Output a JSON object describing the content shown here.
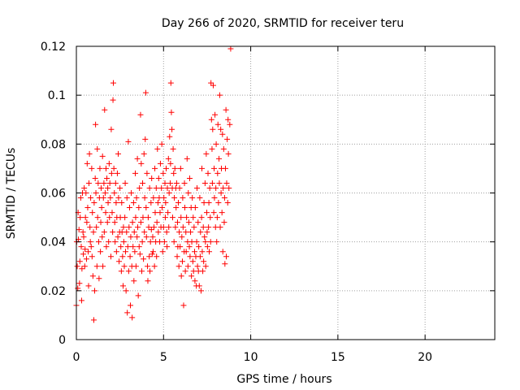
{
  "chart_data": {
    "type": "scatter",
    "title": "Day 266 of 2020, SRMTID for receiver teru",
    "xlabel": "GPS time / hours",
    "ylabel": "SRMTID / TECUs",
    "xlim": [
      0,
      24
    ],
    "ylim": [
      0,
      0.12
    ],
    "xticks": [
      0,
      5,
      10,
      15,
      20
    ],
    "yticks": [
      0,
      0.02,
      0.04,
      0.06,
      0.08,
      0.1,
      0.12
    ],
    "ytick_labels": [
      "0",
      "0.02",
      "0.04",
      "0.06",
      "0.08",
      "0.1",
      "0.12"
    ],
    "grid": true,
    "marker": "+",
    "colors": {
      "marker": "#ff0000",
      "grid": "#a0a0a0",
      "axis": "#000000"
    },
    "series": [
      {
        "x": [
          0.0,
          0.02,
          0.05,
          0.08,
          0.1,
          0.12,
          0.15,
          0.18,
          0.2,
          0.22,
          0.25,
          0.28,
          0.3,
          0.32,
          0.35,
          0.38,
          0.4,
          0.42,
          0.45,
          0.48,
          0.5,
          0.52,
          0.55,
          0.58,
          0.6,
          0.62,
          0.65,
          0.68,
          0.7,
          0.72,
          0.75,
          0.78,
          0.8,
          0.82,
          0.85,
          0.88,
          0.9,
          0.92,
          0.95,
          0.98,
          1.0,
          1.02,
          1.05,
          1.08,
          1.1,
          1.12,
          1.15,
          1.18,
          1.2,
          1.22,
          1.25,
          1.28,
          1.3,
          1.32,
          1.35,
          1.38,
          1.4,
          1.42,
          1.45,
          1.48,
          1.5,
          1.52,
          1.55,
          1.58,
          1.6,
          1.62,
          1.65,
          1.68,
          1.7,
          1.72,
          1.75,
          1.78,
          1.8,
          1.82,
          1.85,
          1.88,
          1.9,
          1.92,
          1.95,
          1.98,
          2.0,
          2.02,
          2.05,
          2.08,
          2.1,
          2.12,
          2.15,
          2.18,
          2.2,
          2.22,
          2.25,
          2.28,
          2.3,
          2.32,
          2.35,
          2.38,
          2.4,
          2.42,
          2.45,
          2.48,
          2.5,
          2.52,
          2.55,
          2.58,
          2.6,
          2.62,
          2.65,
          2.68,
          2.7,
          2.72,
          2.75,
          2.78,
          2.8,
          2.82,
          2.85,
          2.88,
          2.9,
          2.92,
          2.95,
          2.98,
          3.0,
          3.02,
          3.05,
          3.08,
          3.1,
          3.12,
          3.15,
          3.18,
          3.2,
          3.22,
          3.25,
          3.28,
          3.3,
          3.32,
          3.35,
          3.38,
          3.4,
          3.42,
          3.45,
          3.48,
          3.5,
          3.52,
          3.55,
          3.58,
          3.6,
          3.62,
          3.65,
          3.68,
          3.7,
          3.72,
          3.75,
          3.78,
          3.8,
          3.82,
          3.85,
          3.88,
          3.9,
          3.92,
          3.95,
          3.98,
          4.0,
          4.02,
          4.05,
          4.08,
          4.1,
          4.12,
          4.15,
          4.18,
          4.2,
          4.22,
          4.25,
          4.28,
          4.3,
          4.32,
          4.35,
          4.38,
          4.4,
          4.42,
          4.45,
          4.48,
          4.5,
          4.52,
          4.55,
          4.58,
          4.6,
          4.62,
          4.65,
          4.68,
          4.7,
          4.72,
          4.75,
          4.78,
          4.8,
          4.82,
          4.85,
          4.88,
          4.9,
          4.92,
          4.95,
          4.98,
          5.0,
          5.02,
          5.05,
          5.08,
          5.1,
          5.12,
          5.15,
          5.18,
          5.2,
          5.22,
          5.25,
          5.28,
          5.3,
          5.32,
          5.35,
          5.38,
          5.4,
          5.42,
          5.45,
          5.48,
          5.5,
          5.52,
          5.55,
          5.58,
          5.6,
          5.62,
          5.65,
          5.68,
          5.7,
          5.72,
          5.75,
          5.78,
          5.8,
          5.82,
          5.85,
          5.88,
          5.9,
          5.92,
          5.95,
          5.98,
          6.0,
          6.02,
          6.05,
          6.08,
          6.1,
          6.12,
          6.15,
          6.18,
          6.2,
          6.22,
          6.25,
          6.28,
          6.3,
          6.32,
          6.35,
          6.38,
          6.4,
          6.42,
          6.45,
          6.48,
          6.5,
          6.52,
          6.55,
          6.58,
          6.6,
          6.62,
          6.65,
          6.68,
          6.7,
          6.72,
          6.75,
          6.78,
          6.8,
          6.82,
          6.85,
          6.88,
          6.9,
          6.92,
          6.95,
          6.98,
          7.0,
          7.02,
          7.05,
          7.08,
          7.1,
          7.12,
          7.15,
          7.18,
          7.2,
          7.22,
          7.25,
          7.28,
          7.3,
          7.32,
          7.35,
          7.38,
          7.4,
          7.42,
          7.45,
          7.48,
          7.5,
          7.52,
          7.55,
          7.58,
          7.6,
          7.62,
          7.65,
          7.68,
          7.7,
          7.72,
          7.75,
          7.78,
          7.8,
          7.82,
          7.85,
          7.88,
          7.9,
          7.92,
          7.95,
          7.98,
          8.0,
          8.02,
          8.05,
          8.08,
          8.1,
          8.12,
          8.15,
          8.18,
          8.2,
          8.22,
          8.25,
          8.28,
          8.3,
          8.32,
          8.35,
          8.38,
          8.4,
          8.42,
          8.45,
          8.48,
          8.5,
          8.52,
          8.55,
          8.58,
          8.6,
          8.62,
          8.65,
          8.68,
          8.7,
          8.72,
          8.75,
          8.8,
          8.85
        ],
        "y": [
          0.014,
          0.04,
          0.03,
          0.021,
          0.052,
          0.041,
          0.045,
          0.023,
          0.032,
          0.05,
          0.058,
          0.038,
          0.016,
          0.029,
          0.06,
          0.044,
          0.035,
          0.042,
          0.062,
          0.03,
          0.037,
          0.05,
          0.06,
          0.033,
          0.048,
          0.072,
          0.054,
          0.036,
          0.022,
          0.064,
          0.076,
          0.046,
          0.04,
          0.058,
          0.038,
          0.07,
          0.034,
          0.052,
          0.026,
          0.044,
          0.008,
          0.056,
          0.02,
          0.066,
          0.088,
          0.06,
          0.046,
          0.03,
          0.078,
          0.05,
          0.064,
          0.04,
          0.025,
          0.058,
          0.07,
          0.036,
          0.048,
          0.062,
          0.054,
          0.042,
          0.075,
          0.03,
          0.058,
          0.064,
          0.044,
          0.094,
          0.06,
          0.052,
          0.07,
          0.038,
          0.066,
          0.048,
          0.062,
          0.056,
          0.04,
          0.072,
          0.05,
          0.064,
          0.058,
          0.034,
          0.086,
          0.068,
          0.052,
          0.044,
          0.098,
          0.105,
          0.07,
          0.06,
          0.048,
          0.04,
          0.064,
          0.056,
          0.036,
          0.05,
          0.068,
          0.042,
          0.076,
          0.058,
          0.032,
          0.044,
          0.062,
          0.05,
          0.038,
          0.028,
          0.056,
          0.044,
          0.034,
          0.022,
          0.046,
          0.04,
          0.03,
          0.05,
          0.064,
          0.036,
          0.02,
          0.044,
          0.058,
          0.011,
          0.038,
          0.081,
          0.028,
          0.046,
          0.054,
          0.034,
          0.014,
          0.042,
          0.06,
          0.03,
          0.009,
          0.048,
          0.038,
          0.056,
          0.024,
          0.044,
          0.036,
          0.068,
          0.05,
          0.03,
          0.058,
          0.042,
          0.074,
          0.046,
          0.018,
          0.054,
          0.038,
          0.062,
          0.035,
          0.092,
          0.048,
          0.072,
          0.028,
          0.04,
          0.064,
          0.05,
          0.033,
          0.076,
          0.044,
          0.058,
          0.082,
          0.101,
          0.054,
          0.042,
          0.068,
          0.03,
          0.024,
          0.05,
          0.046,
          0.034,
          0.062,
          0.028,
          0.04,
          0.056,
          0.045,
          0.066,
          0.035,
          0.042,
          0.036,
          0.058,
          0.046,
          0.03,
          0.07,
          0.052,
          0.04,
          0.062,
          0.034,
          0.048,
          0.078,
          0.056,
          0.044,
          0.066,
          0.058,
          0.04,
          0.052,
          0.072,
          0.046,
          0.062,
          0.08,
          0.054,
          0.036,
          0.068,
          0.046,
          0.058,
          0.04,
          0.064,
          0.05,
          0.056,
          0.07,
          0.044,
          0.038,
          0.062,
          0.052,
          0.074,
          0.046,
          0.06,
          0.083,
          0.064,
          0.072,
          0.105,
          0.093,
          0.086,
          0.062,
          0.05,
          0.078,
          0.068,
          0.04,
          0.058,
          0.07,
          0.046,
          0.062,
          0.054,
          0.064,
          0.034,
          0.048,
          0.038,
          0.056,
          0.03,
          0.044,
          0.062,
          0.038,
          0.07,
          0.05,
          0.026,
          0.042,
          0.032,
          0.058,
          0.046,
          0.014,
          0.036,
          0.064,
          0.054,
          0.028,
          0.044,
          0.036,
          0.05,
          0.074,
          0.04,
          0.03,
          0.06,
          0.048,
          0.038,
          0.066,
          0.034,
          0.044,
          0.054,
          0.026,
          0.04,
          0.058,
          0.032,
          0.05,
          0.028,
          0.046,
          0.036,
          0.024,
          0.054,
          0.034,
          0.022,
          0.04,
          0.062,
          0.03,
          0.048,
          0.028,
          0.038,
          0.022,
          0.058,
          0.034,
          0.044,
          0.02,
          0.05,
          0.07,
          0.036,
          0.028,
          0.046,
          0.032,
          0.056,
          0.042,
          0.064,
          0.04,
          0.03,
          0.076,
          0.052,
          0.044,
          0.038,
          0.068,
          0.046,
          0.056,
          0.036,
          0.062,
          0.05,
          0.04,
          0.105,
          0.09,
          0.078,
          0.064,
          0.086,
          0.104,
          0.052,
          0.07,
          0.058,
          0.092,
          0.046,
          0.062,
          0.08,
          0.04,
          0.05,
          0.068,
          0.088,
          0.056,
          0.074,
          0.064,
          0.1,
          0.046,
          0.086,
          0.06,
          0.07,
          0.052,
          0.084,
          0.036,
          0.062,
          0.078,
          0.048,
          0.058,
          0.031,
          0.07,
          0.094,
          0.034,
          0.064,
          0.082,
          0.056,
          0.09,
          0.076,
          0.062,
          0.088,
          0.119
        ]
      }
    ]
  }
}
